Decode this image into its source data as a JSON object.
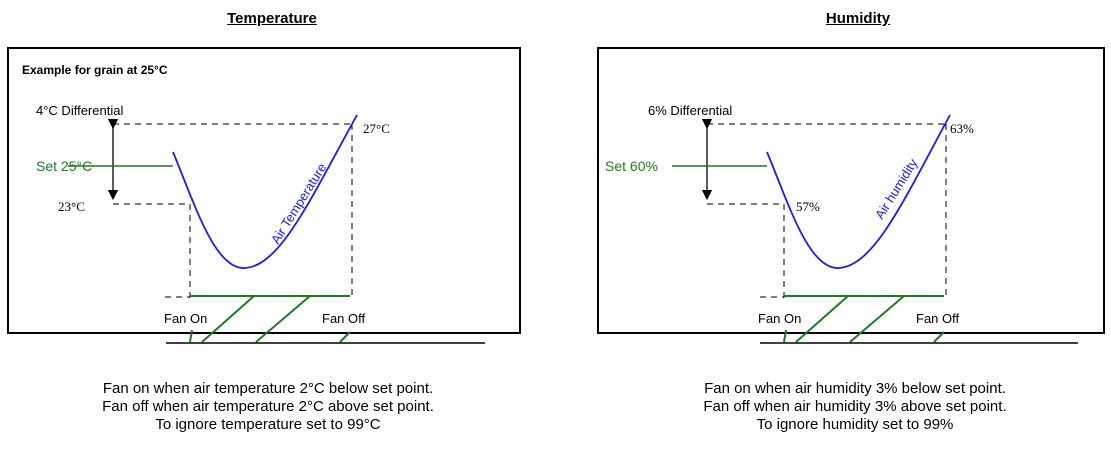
{
  "temperature": {
    "title": "Temperature",
    "example": "Example for grain at  25°C",
    "differential": "4°C Differential",
    "set_label": "Set 25°C",
    "high": "27°C",
    "low": "23°C",
    "curve_label": "Air Temperature",
    "fan_on": "Fan On",
    "fan_off": "Fan Off",
    "caption": [
      "Fan on when air temperature 2°C below set point.",
      "Fan off when air temperature 2°C above set point.",
      "To ignore temperature set to 99°C"
    ]
  },
  "humidity": {
    "title": "Humidity",
    "differential": "6% Differential",
    "set_label": "Set 60%",
    "high": "63%",
    "low": "57%",
    "curve_label": "Air humidity",
    "fan_on": "Fan On",
    "fan_off": "Fan Off",
    "caption": [
      "Fan on when air humidity 3% below set point.",
      "Fan off when air humidity 3% above set point.",
      "To ignore humidity set to 99%"
    ]
  },
  "colors": {
    "curve": "#1a1aff",
    "set_point": "#1e7b1e",
    "hatch": "#1e7b1e",
    "line": "#000000"
  }
}
